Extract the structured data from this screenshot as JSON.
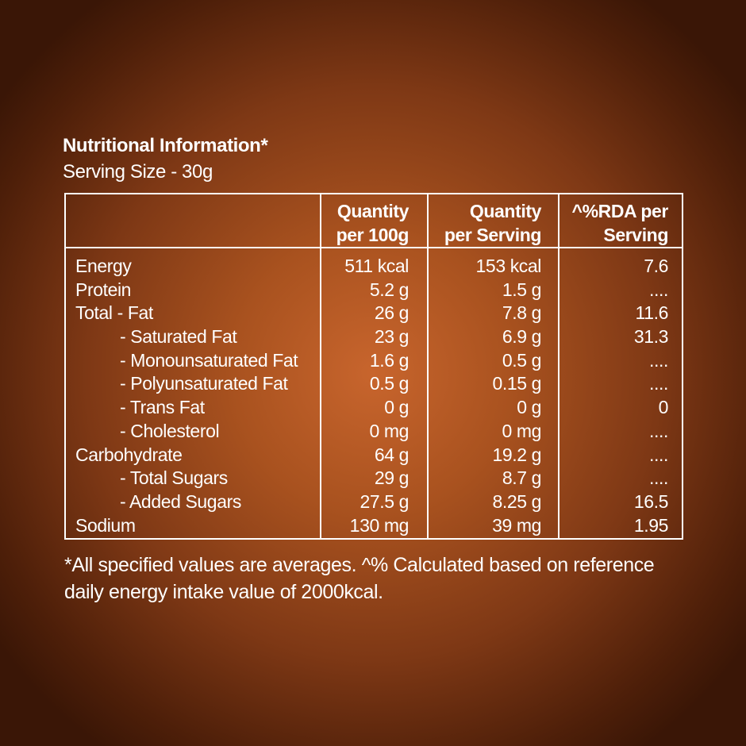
{
  "title": "Nutritional Information*",
  "serving_size": "Serving Size - 30g",
  "table": {
    "headers": {
      "per_100g": [
        "Quantity",
        "per 100g"
      ],
      "per_serving": [
        "Quantity",
        "per Serving"
      ],
      "rda": [
        "^%RDA per",
        "Serving"
      ]
    },
    "rows": [
      {
        "name": "Energy",
        "per_100g": "511 kcal",
        "per_serving": "153 kcal",
        "rda": "7.6"
      },
      {
        "name": "Protein",
        "per_100g": "5.2 g",
        "per_serving": "1.5 g",
        "rda": "...."
      },
      {
        "name": "Total - Fat",
        "per_100g": "26 g",
        "per_serving": "7.8 g",
        "rda": "11.6"
      },
      {
        "name": "- Saturated Fat",
        "per_100g": "23 g",
        "per_serving": "6.9 g",
        "rda": "31.3"
      },
      {
        "name": "- Monounsaturated Fat",
        "per_100g": "1.6 g",
        "per_serving": "0.5 g",
        "rda": "...."
      },
      {
        "name": "- Polyunsaturated Fat",
        "per_100g": "0.5 g",
        "per_serving": "0.15 g",
        "rda": "...."
      },
      {
        "name": "- Trans Fat",
        "per_100g": "0 g",
        "per_serving": "0 g",
        "rda": "0"
      },
      {
        "name": "- Cholesterol",
        "per_100g": "0 mg",
        "per_serving": "0 mg",
        "rda": "...."
      },
      {
        "name": "Carbohydrate",
        "per_100g": "64 g",
        "per_serving": "19.2 g",
        "rda": "...."
      },
      {
        "name": "- Total Sugars",
        "per_100g": "29 g",
        "per_serving": "8.7 g",
        "rda": "...."
      },
      {
        "name": "- Added Sugars",
        "per_100g": "27.5 g",
        "per_serving": "8.25 g",
        "rda": "16.5"
      },
      {
        "name": "Sodium",
        "per_100g": "130 mg",
        "per_serving": "39 mg",
        "rda": "1.95"
      }
    ]
  },
  "footnote": "*All specified values are averages. ^% Calculated based on reference daily energy intake value of 2000kcal."
}
